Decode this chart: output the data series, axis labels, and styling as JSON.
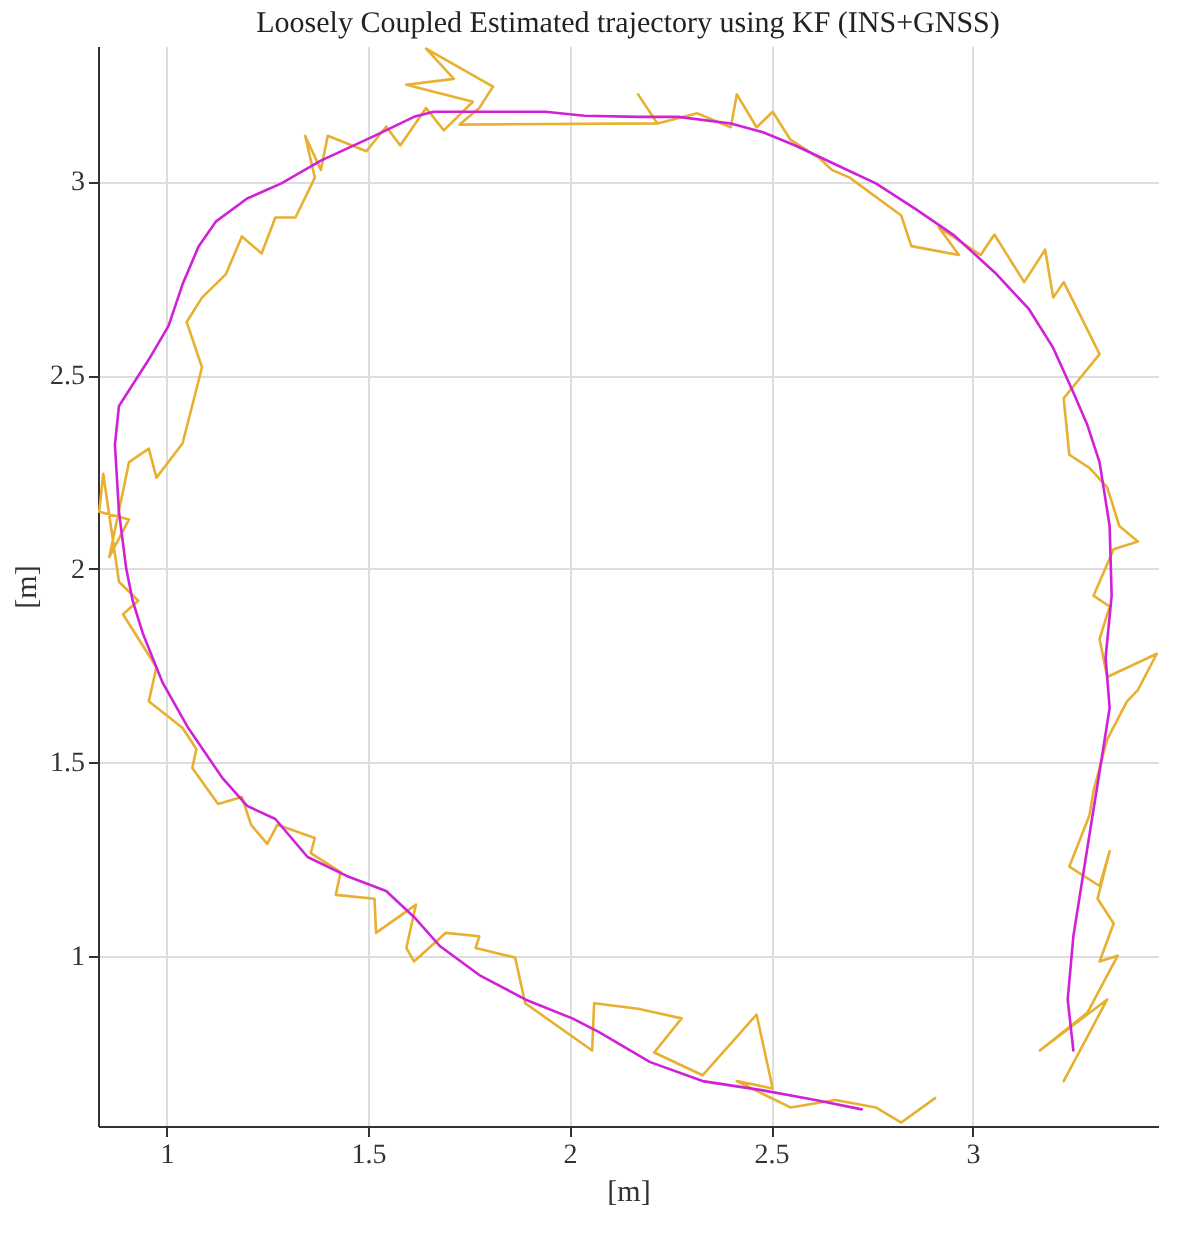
{
  "chart_data": {
    "type": "line",
    "title": "Loosely Coupled Estimated trajectory using KF (INS+GNSS)",
    "xlabel": "[m]",
    "ylabel": "[m]",
    "xlim": [
      0.83,
      3.46
    ],
    "ylim": [
      0.56,
      3.35
    ],
    "xticks": [
      1,
      1.5,
      2,
      2.5,
      3
    ],
    "yticks": [
      1,
      1.5,
      2,
      2.5,
      3
    ],
    "grid": true,
    "series": [
      {
        "color": "#e8b030",
        "x": [
          3.226,
          3.334,
          3.167,
          3.285,
          3.36,
          3.315,
          3.35,
          3.31,
          3.34,
          3.315,
          3.24,
          3.29,
          3.3,
          3.334,
          3.383,
          3.41,
          3.457,
          3.334,
          3.315,
          3.34,
          3.3,
          3.35,
          3.41,
          3.364,
          3.334,
          3.29,
          3.24,
          3.226,
          3.315,
          3.226,
          3.2,
          3.18,
          3.128,
          3.054,
          3.02,
          2.916,
          2.966,
          2.848,
          2.823,
          2.695,
          2.651,
          2.62,
          2.548,
          2.504,
          2.464,
          2.415,
          2.4,
          2.317,
          2.218,
          2.17,
          2.218,
          1.727,
          1.776,
          1.81,
          1.644,
          1.713,
          1.595,
          1.76,
          1.688,
          1.644,
          1.58,
          1.545,
          1.496,
          1.4,
          1.383,
          1.344,
          1.368,
          1.32,
          1.27,
          1.236,
          1.187,
          1.147,
          1.088,
          1.05,
          1.088,
          1.04,
          0.975,
          0.956,
          0.907,
          0.858,
          0.907,
          0.833,
          0.843,
          0.882,
          0.93,
          0.892,
          0.975,
          0.956,
          1.04,
          1.074,
          1.064,
          1.128,
          1.187,
          1.21,
          1.25,
          1.275,
          1.368,
          1.358,
          1.432,
          1.42,
          1.516,
          1.52,
          1.619,
          1.595,
          1.614,
          1.693,
          1.776,
          1.767,
          1.865,
          1.89,
          2.056,
          2.061,
          2.17,
          2.278,
          2.21,
          2.33,
          2.464,
          2.504,
          2.415,
          2.548,
          2.66,
          2.76,
          2.823,
          2.907
        ],
        "values": [
          0.676,
          0.887,
          0.755,
          0.853,
          1.0,
          0.985,
          1.083,
          1.147,
          1.27,
          1.18,
          1.23,
          1.363,
          1.426,
          1.559,
          1.657,
          1.686,
          1.78,
          1.72,
          1.818,
          1.902,
          1.93,
          2.05,
          2.07,
          2.11,
          2.21,
          2.26,
          2.294,
          2.44,
          2.554,
          2.74,
          2.7,
          2.824,
          2.74,
          2.863,
          2.81,
          2.882,
          2.81,
          2.833,
          2.912,
          3.01,
          3.03,
          3.06,
          3.108,
          3.18,
          3.14,
          3.225,
          3.14,
          3.176,
          3.15,
          3.225,
          3.15,
          3.147,
          3.19,
          3.245,
          3.343,
          3.265,
          3.25,
          3.206,
          3.132,
          3.19,
          3.093,
          3.142,
          3.078,
          3.118,
          3.03,
          3.118,
          3.01,
          2.907,
          2.907,
          2.814,
          2.858,
          2.76,
          2.7,
          2.637,
          2.52,
          2.324,
          2.235,
          2.31,
          2.275,
          2.03,
          2.127,
          2.147,
          2.245,
          1.966,
          1.917,
          1.882,
          1.745,
          1.657,
          1.588,
          1.534,
          1.485,
          1.392,
          1.41,
          1.338,
          1.289,
          1.338,
          1.304,
          1.265,
          1.216,
          1.157,
          1.147,
          1.059,
          1.132,
          1.02,
          0.985,
          1.059,
          1.05,
          1.02,
          0.995,
          0.877,
          0.755,
          0.877,
          0.863,
          0.838,
          0.75,
          0.691,
          0.848,
          0.657,
          0.676,
          0.608,
          0.627,
          0.608,
          0.569,
          0.632
        ]
      },
      {
        "color": "#d020d8",
        "x": [
          3.25,
          3.236,
          3.25,
          3.285,
          3.315,
          3.34,
          3.33,
          3.345,
          3.34,
          3.315,
          3.285,
          3.25,
          3.2,
          3.14,
          3.055,
          2.955,
          2.857,
          2.76,
          2.66,
          2.56,
          2.48,
          2.4,
          2.27,
          2.17,
          2.037,
          1.94,
          1.776,
          1.663,
          1.614,
          1.516,
          1.383,
          1.285,
          1.2,
          1.123,
          1.08,
          1.04,
          1.005,
          0.956,
          0.882,
          0.872,
          0.882,
          0.9,
          0.916,
          0.941,
          0.99,
          1.054,
          1.138,
          1.2,
          1.27,
          1.35,
          1.447,
          1.545,
          1.614,
          1.678,
          1.776,
          1.89,
          2.007,
          2.071,
          2.2,
          2.33,
          2.48,
          2.61,
          2.725
        ],
        "values": [
          0.755,
          0.887,
          1.05,
          1.28,
          1.475,
          1.64,
          1.77,
          1.93,
          2.11,
          2.275,
          2.37,
          2.455,
          2.57,
          2.67,
          2.765,
          2.86,
          2.93,
          2.995,
          3.044,
          3.093,
          3.127,
          3.15,
          3.167,
          3.167,
          3.17,
          3.18,
          3.18,
          3.18,
          3.167,
          3.118,
          3.054,
          2.995,
          2.956,
          2.897,
          2.833,
          2.735,
          2.627,
          2.54,
          2.42,
          2.32,
          2.147,
          2.0,
          1.917,
          1.833,
          1.706,
          1.588,
          1.46,
          1.387,
          1.353,
          1.255,
          1.206,
          1.167,
          1.1,
          1.025,
          0.95,
          0.887,
          0.838,
          0.804,
          0.725,
          0.676,
          0.652,
          0.627,
          0.603
        ]
      }
    ]
  }
}
